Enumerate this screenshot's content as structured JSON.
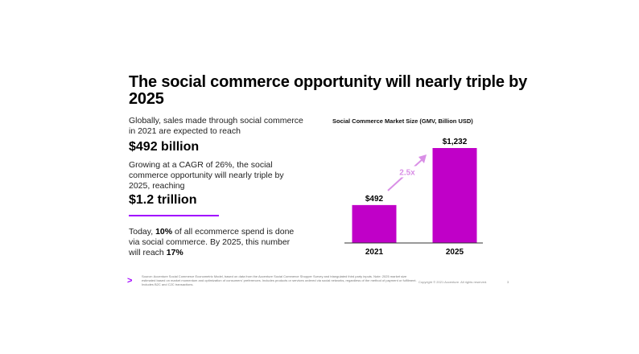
{
  "slide": {
    "title": "The social commerce opportunity will nearly triple by 2025",
    "intro": "Globally, sales made through social commerce in 2021 are expected to reach",
    "value_2021": "$492 billion",
    "growth": "Growing at a CAGR of 26%, the social commerce opportunity will nearly triple by 2025, reaching",
    "value_2025": "$1.2 trillion",
    "today_prefix": "Today, ",
    "today_pct": "10%",
    "today_mid": " of all ecommerce spend is done via social commerce. By 2025, this number will reach ",
    "today_future": "17%",
    "footnote": "Source: Accenture Social Commerce Econometric Model, based on data from the Accenture Social Commerce Shopper Survey and triangulated third party inputs. Note: 2025 market size estimated based on market momentum and optimization of consumers' preferences. Includes products or services ordered via social networks, regardless of the method of payment or fulfilment. Includes B2C and C2C transactions.",
    "copyright": "Copyright © 2021 Accenture. All rights reserved.",
    "page_number": "3",
    "logo_glyph": ">"
  },
  "chart_data": {
    "type": "bar",
    "title": "Social Commerce Market Size (GMV, Billion USD)",
    "categories": [
      "2021",
      "2025"
    ],
    "values": [
      492,
      1232
    ],
    "data_labels": [
      "$492",
      "$1,232"
    ],
    "annotation": "2.5x",
    "bar_color": "#c000c8",
    "annotation_color": "#d98fe6",
    "ylim": [
      0,
      1232
    ],
    "grid": false,
    "legend": "none"
  }
}
